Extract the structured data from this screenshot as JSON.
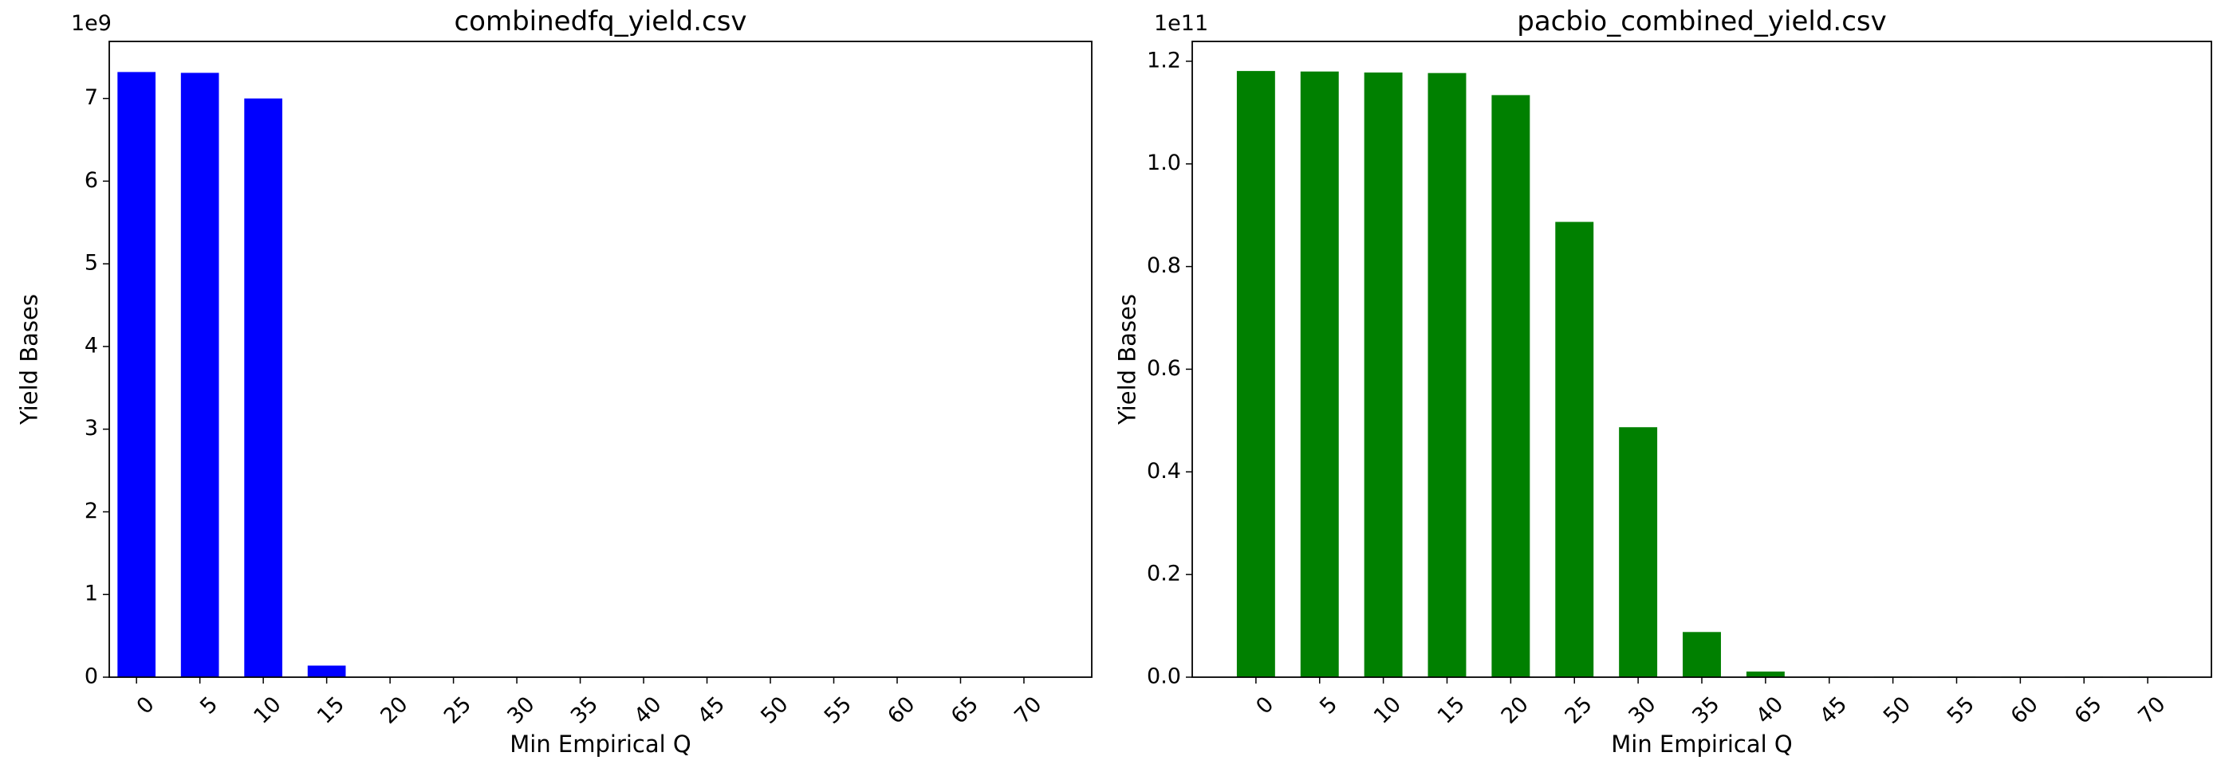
{
  "chart_data": [
    {
      "type": "bar",
      "title": "combinedfq_yield.csv",
      "xlabel": "Min Empirical Q",
      "ylabel": "Yield Bases",
      "offset_label": "1e9",
      "categories": [
        "0",
        "5",
        "10",
        "15",
        "20",
        "25",
        "30",
        "35",
        "40",
        "45",
        "50",
        "55",
        "60",
        "65",
        "70"
      ],
      "values": [
        7.32,
        7.31,
        7.0,
        0.14,
        0,
        0,
        0,
        0,
        0,
        0,
        0,
        0,
        0,
        0,
        0
      ],
      "color": "#0000ff",
      "ylim": [
        0,
        7.69
      ],
      "yticks": [
        0,
        1,
        2,
        3,
        4,
        5,
        6,
        7
      ]
    },
    {
      "type": "bar",
      "title": "pacbio_combined_yield.csv",
      "xlabel": "Min Empirical Q",
      "ylabel": "Yield Bases",
      "offset_label": "1e11",
      "categories": [
        "0",
        "5",
        "10",
        "15",
        "20",
        "25",
        "30",
        "35",
        "40",
        "45",
        "50",
        "55",
        "60",
        "65",
        "70"
      ],
      "values": [
        1.181,
        1.18,
        1.178,
        1.177,
        1.134,
        0.887,
        0.487,
        0.088,
        0.011,
        0.001,
        0.001,
        0.001,
        0.001,
        0.001,
        0.001
      ],
      "color": "#008000",
      "ylim": [
        0,
        1.2386
      ],
      "yticks": [
        {
          "value": 0,
          "label": "0.0"
        },
        {
          "value": 0.2,
          "label": "0.2"
        },
        {
          "value": 0.4,
          "label": "0.4"
        },
        {
          "value": 0.6,
          "label": "0.6"
        },
        {
          "value": 0.8,
          "label": "0.8"
        },
        {
          "value": 1.0,
          "label": "1.0"
        },
        {
          "value": 1.2,
          "label": "1.2"
        }
      ]
    }
  ]
}
